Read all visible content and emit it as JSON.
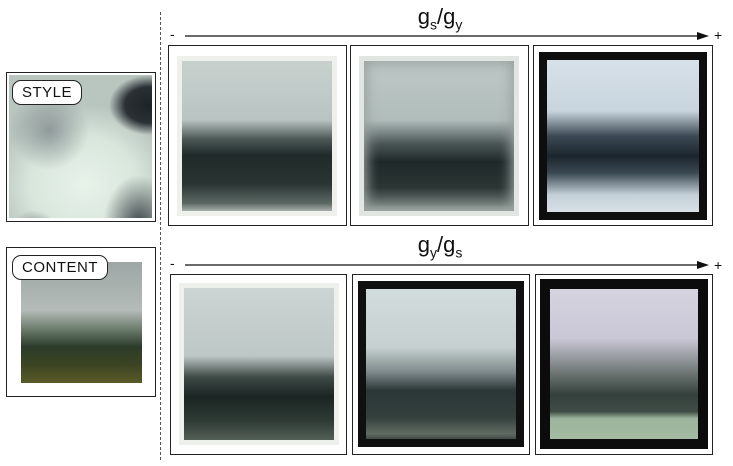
{
  "labels": {
    "style": "STYLE",
    "content": "CONTENT"
  },
  "top_axis": {
    "title_main_1": "g",
    "title_sub_1": "s",
    "title_slash": "/",
    "title_main_2": "g",
    "title_sub_2": "y",
    "minus": "-",
    "plus": "+"
  },
  "bottom_axis": {
    "title_main_1": "g",
    "title_sub_1": "y",
    "title_slash": "/",
    "title_main_2": "g",
    "title_sub_2": "s",
    "minus": "-",
    "plus": "+"
  }
}
